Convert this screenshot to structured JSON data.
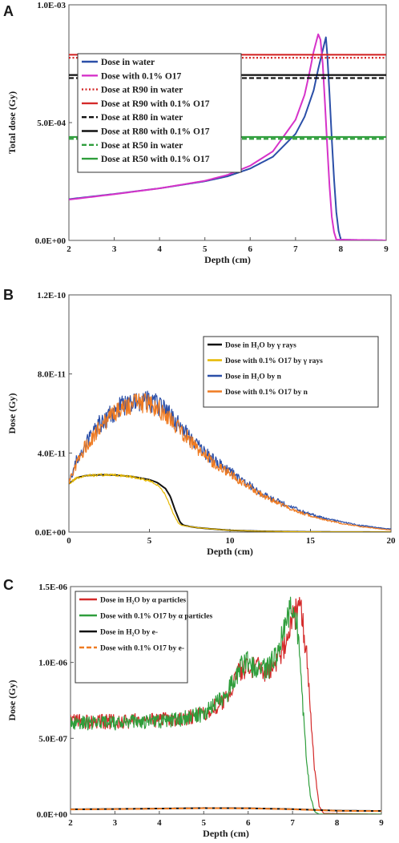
{
  "chart_data": [
    {
      "panel": "A",
      "type": "line",
      "xlabel": "Depth (cm)",
      "ylabel": "Total dose (Gy)",
      "xlim": [
        2,
        9
      ],
      "ylim": [
        0,
        0.001
      ],
      "xticks": [
        "2",
        "3",
        "4",
        "5",
        "6",
        "7",
        "8",
        "9"
      ],
      "xtick_values": [
        2,
        3,
        4,
        5,
        6,
        7,
        8,
        9
      ],
      "yticks": [
        "0.0E+00",
        "5.0E-04",
        "1.0E-03"
      ],
      "ytick_values": [
        0,
        0.0005,
        0.001
      ],
      "legend_position": "top-left",
      "series": [
        {
          "name": "Dose in water",
          "color": "#2b4fa8",
          "style": "solid",
          "kind": "bragg",
          "x": [
            2,
            3,
            4,
            5,
            5.5,
            6,
            6.5,
            7,
            7.2,
            7.4,
            7.5,
            7.6,
            7.67,
            7.7,
            7.75,
            7.8,
            7.85,
            7.9,
            7.95,
            8.0,
            9.0
          ],
          "y": [
            0.000175,
            0.000197,
            0.000221,
            0.000251,
            0.000272,
            0.000305,
            0.000355,
            0.000452,
            0.000525,
            0.000637,
            0.000727,
            0.000807,
            0.000862,
            0.00079,
            0.00062,
            0.00043,
            0.00026,
            0.00012,
            4e-05,
            3e-06,
            0
          ]
        },
        {
          "name": "Dose with 0.1% O17",
          "color": "#d633c9",
          "style": "solid",
          "kind": "bragg",
          "x": [
            2,
            3,
            4,
            5,
            5.5,
            6,
            6.5,
            7,
            7.2,
            7.3,
            7.4,
            7.5,
            7.55,
            7.6,
            7.65,
            7.7,
            7.75,
            7.8,
            7.85,
            7.9,
            9.0
          ],
          "y": [
            0.000173,
            0.000196,
            0.000221,
            0.000253,
            0.000278,
            0.000317,
            0.000378,
            0.000512,
            0.000618,
            0.000705,
            0.000802,
            0.000875,
            0.000852,
            0.00075,
            0.00058,
            0.0004,
            0.00023,
            0.0001,
            3.5e-05,
            3e-06,
            0
          ]
        },
        {
          "name": "Dose at R90 in water",
          "color": "#d42a2a",
          "style": "dotted",
          "kind": "hline",
          "y": [
            0.000775
          ]
        },
        {
          "name": "Dose at R90 with 0.1% O17",
          "color": "#d42a2a",
          "style": "solid",
          "kind": "hline",
          "y": [
            0.000788
          ]
        },
        {
          "name": "Dose at R80 in water",
          "color": "#111111",
          "style": "dashed",
          "kind": "hline",
          "y": [
            0.000689
          ]
        },
        {
          "name": "Dose at R80 with 0.1% O17",
          "color": "#111111",
          "style": "solid",
          "kind": "hline",
          "y": [
            0.000702
          ]
        },
        {
          "name": "Dose at R50 in water",
          "color": "#2f9e3c",
          "style": "dashed",
          "kind": "hline",
          "y": [
            0.000431
          ]
        },
        {
          "name": "Dose at R50 with 0.1% O17",
          "color": "#2f9e3c",
          "style": "solid",
          "kind": "hline",
          "y": [
            0.000439
          ]
        }
      ]
    },
    {
      "panel": "B",
      "type": "line",
      "xlabel": "Depth (cm)",
      "ylabel": "Dose (Gy)",
      "xlim": [
        0,
        20
      ],
      "ylim": [
        0,
        1.2e-10
      ],
      "xticks": [
        "0",
        "5",
        "10",
        "15",
        "20"
      ],
      "xtick_values": [
        0,
        5,
        10,
        15,
        20
      ],
      "yticks": [
        "0.0E+00",
        "4.0E-11",
        "8.0E-11",
        "1.2E-10"
      ],
      "ytick_values": [
        0,
        4e-11,
        8e-11,
        1.2e-10
      ],
      "legend_position": "right",
      "series": [
        {
          "name": "Dose in H₂O by γ rays",
          "color": "#111111",
          "style": "solid",
          "noise": 0.0,
          "x": [
            0,
            0.5,
            1,
            2,
            3,
            4,
            5,
            5.5,
            6,
            6.3,
            6.6,
            6.9,
            7.1,
            7.5,
            8,
            9,
            10,
            12,
            15,
            20
          ],
          "y": [
            2.45e-11,
            2.75e-11,
            2.85e-11,
            2.9e-11,
            2.88e-11,
            2.8e-11,
            2.65e-11,
            2.5e-11,
            2.2e-11,
            1.8e-11,
            1.1e-11,
            5e-12,
            3.5e-12,
            2.8e-12,
            2.2e-12,
            1.5e-12,
            9e-13,
            4e-13,
            1e-13,
            0
          ]
        },
        {
          "name": "Dose with 0.1% O17 by γ rays",
          "color": "#e6b800",
          "style": "solid",
          "noise": 0.015,
          "x": [
            0,
            0.5,
            1,
            2,
            3,
            4,
            5,
            5.5,
            5.9,
            6.2,
            6.5,
            6.8,
            7.0,
            7.5,
            8,
            9,
            10,
            12,
            15,
            20
          ],
          "y": [
            2.45e-11,
            2.75e-11,
            2.85e-11,
            2.9e-11,
            2.88e-11,
            2.78e-11,
            2.6e-11,
            2.4e-11,
            2e-11,
            1.5e-11,
            9e-12,
            4.5e-12,
            3.4e-12,
            2.8e-12,
            2.2e-12,
            1.5e-12,
            9e-13,
            4e-13,
            1e-13,
            0
          ]
        },
        {
          "name": "Dose in H₂O by n",
          "color": "#2b4fa8",
          "style": "solid",
          "noise": 0.055,
          "offset": 5e-13,
          "x": [
            0,
            0.5,
            1,
            2,
            3,
            4,
            5,
            6,
            7,
            8,
            9,
            10,
            11,
            12,
            13,
            14,
            15,
            16,
            17,
            18,
            19,
            20
          ],
          "y": [
            2.5e-11,
            3.6e-11,
            4.4e-11,
            5.5e-11,
            6.2e-11,
            6.6e-11,
            6.6e-11,
            6.1e-11,
            5.2e-11,
            4.3e-11,
            3.6e-11,
            3e-11,
            2.45e-11,
            1.9e-11,
            1.5e-11,
            1.15e-11,
            8.5e-12,
            6.2e-12,
            4.5e-12,
            3e-12,
            2e-12,
            1e-12
          ]
        },
        {
          "name": "Dose with 0.1% O17 by n",
          "color": "#ef7b22",
          "style": "solid",
          "noise": 0.05,
          "x": [
            0,
            0.5,
            1,
            2,
            3,
            4,
            5,
            6,
            7,
            8,
            9,
            10,
            11,
            12,
            13,
            14,
            15,
            16,
            17,
            18,
            19,
            20
          ],
          "y": [
            2.5e-11,
            3.5e-11,
            4.3e-11,
            5.4e-11,
            6.1e-11,
            6.5e-11,
            6.5e-11,
            6e-11,
            5.1e-11,
            4.2e-11,
            3.5e-11,
            2.95e-11,
            2.4e-11,
            1.85e-11,
            1.45e-11,
            1.1e-11,
            8.2e-12,
            6e-12,
            4.3e-12,
            2.9e-12,
            1.9e-12,
            1e-12
          ]
        }
      ]
    },
    {
      "panel": "C",
      "type": "line",
      "xlabel": "Depth (cm)",
      "ylabel": "Dose (Gy)",
      "xlim": [
        2,
        9
      ],
      "ylim": [
        0,
        1.5e-06
      ],
      "xticks": [
        "2",
        "3",
        "4",
        "5",
        "6",
        "7",
        "8",
        "9"
      ],
      "xtick_values": [
        2,
        3,
        4,
        5,
        6,
        7,
        8,
        9
      ],
      "yticks": [
        "0.0E+00",
        "5.0E-07",
        "1.0E-06",
        "1.5E-06"
      ],
      "ytick_values": [
        0,
        5e-07,
        1e-06,
        1.5e-06
      ],
      "legend_position": "top-left",
      "series": [
        {
          "name": "Dose in H₂O by α particles",
          "color": "#d42a2a",
          "style": "solid",
          "noise": 0.05,
          "x": [
            2,
            3,
            4,
            4.5,
            5,
            5.5,
            5.8,
            6.0,
            6.2,
            6.5,
            6.8,
            7.0,
            7.1,
            7.2,
            7.3,
            7.4,
            7.5,
            7.6,
            7.7,
            9
          ],
          "y": [
            6.1e-07,
            6.1e-07,
            6.2e-07,
            6.3e-07,
            6.6e-07,
            7.6e-07,
            9.3e-07,
            9.9e-07,
            9.6e-07,
            9.4e-07,
            1.08e-06,
            1.28e-06,
            1.34e-06,
            1.33e-06,
            1.1e-06,
            6.8e-07,
            2.8e-07,
            5e-08,
            5e-09,
            0
          ]
        },
        {
          "name": "Dose with 0.1% O17 by α particles",
          "color": "#2f9e3c",
          "style": "solid",
          "noise": 0.05,
          "x": [
            2,
            3,
            4,
            4.5,
            5,
            5.5,
            5.8,
            6.0,
            6.2,
            6.5,
            6.8,
            6.9,
            7.0,
            7.1,
            7.2,
            7.3,
            7.4,
            7.5,
            7.6,
            9
          ],
          "y": [
            6e-07,
            6e-07,
            6.15e-07,
            6.3e-07,
            6.6e-07,
            7.8e-07,
            9.6e-07,
            1e-06,
            9.6e-07,
            9.7e-07,
            1.18e-06,
            1.33e-06,
            1.37e-06,
            1.25e-06,
            8.5e-07,
            4.2e-07,
            1.2e-07,
            1.5e-08,
            0,
            0
          ]
        },
        {
          "name": "Dose in H₂O by e-",
          "color": "#111111",
          "style": "solid",
          "noise": 0.0,
          "x": [
            2,
            3,
            4,
            5,
            6,
            7,
            7.5,
            8,
            9
          ],
          "y": [
            3.2e-08,
            3.4e-08,
            3.7e-08,
            4e-08,
            3.9e-08,
            3.3e-08,
            2.8e-08,
            2.3e-08,
            2.1e-08
          ]
        },
        {
          "name": "Dose with 0.1% O17 by e-",
          "color": "#ef7b22",
          "style": "dashed",
          "noise": 0.0,
          "x": [
            2,
            3,
            4,
            5,
            6,
            7,
            7.5,
            8,
            9
          ],
          "y": [
            3.1e-08,
            3.3e-08,
            3.6e-08,
            3.9e-08,
            3.8e-08,
            3.2e-08,
            2.7e-08,
            2.2e-08,
            2e-08
          ]
        }
      ]
    }
  ],
  "panel_labels": [
    "A",
    "B",
    "C"
  ]
}
